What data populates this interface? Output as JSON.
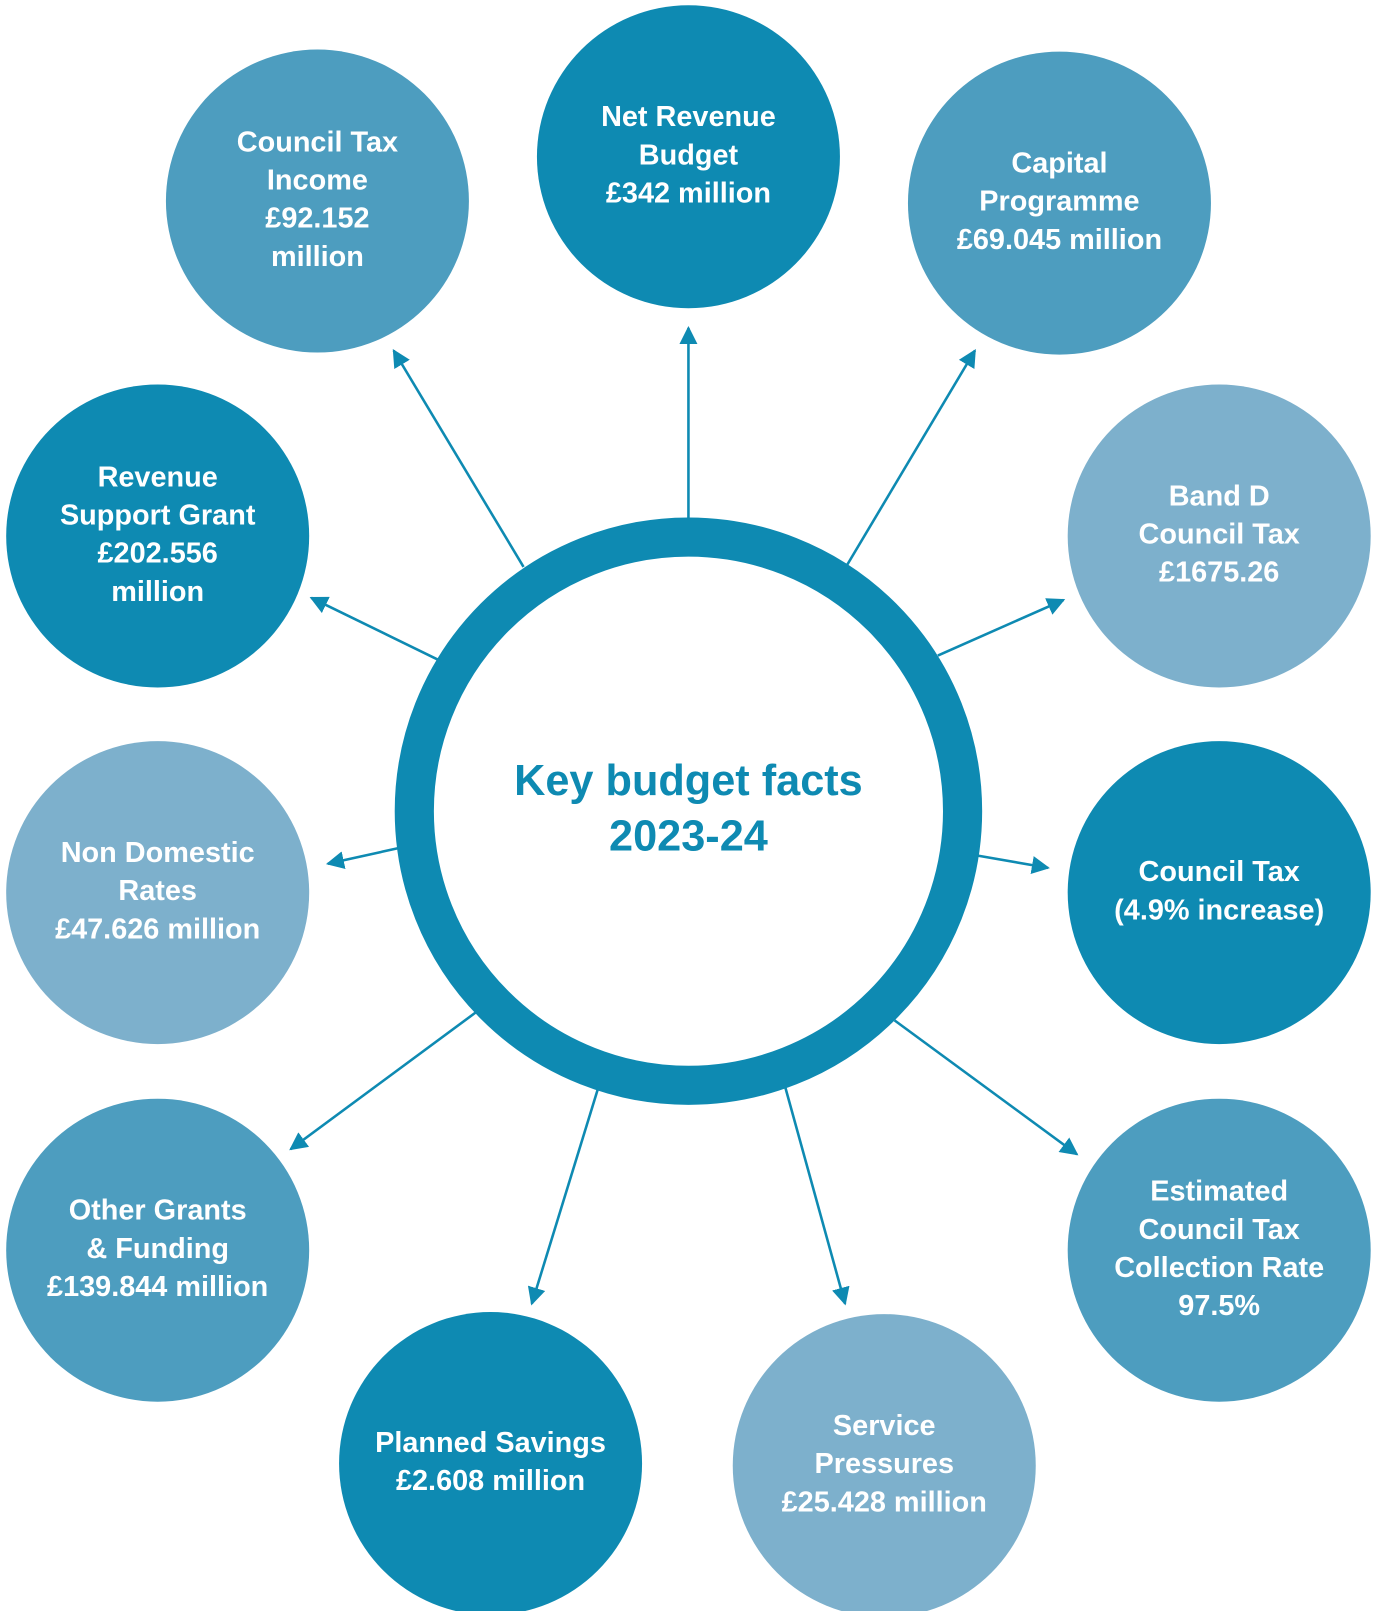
{
  "center": {
    "lines": [
      "Key budget facts",
      "2023-24"
    ]
  },
  "nodes": [
    {
      "lines": [
        "Council Tax",
        "Income",
        "£92.152",
        "million"
      ]
    },
    {
      "lines": [
        "Net Revenue",
        "Budget",
        "£342 million"
      ]
    },
    {
      "lines": [
        "Capital",
        "Programme",
        "£69.045 million"
      ]
    },
    {
      "lines": [
        "Band D",
        "Council Tax",
        "£1675.26"
      ]
    },
    {
      "lines": [
        "Council Tax",
        "(4.9% increase)"
      ]
    },
    {
      "lines": [
        "Estimated",
        "Council Tax",
        "Collection Rate",
        "97.5%"
      ]
    },
    {
      "lines": [
        "Service",
        "Pressures",
        "£25.428 million"
      ]
    },
    {
      "lines": [
        "Planned Savings",
        "£2.608 million"
      ]
    },
    {
      "lines": [
        "Other Grants",
        "& Funding",
        "£139.844 million"
      ]
    },
    {
      "lines": [
        "Non Domestic",
        "Rates",
        "£47.626 million"
      ]
    },
    {
      "lines": [
        "Revenue",
        "Support Grant",
        "£202.556",
        "million"
      ]
    }
  ]
}
